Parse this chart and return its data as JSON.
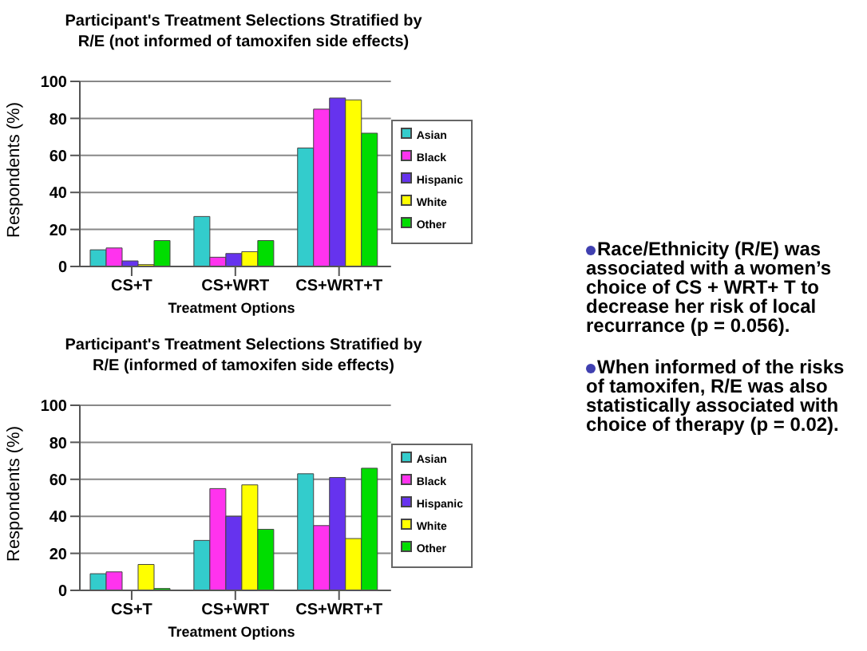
{
  "chart_data": [
    {
      "type": "bar",
      "title": "Participant's Treatment Selections Stratified by R/E (not informed of tamoxifen side effects)",
      "xlabel": "Treatment Options",
      "ylabel": "Respondents (%)",
      "categories": [
        "CS+T",
        "CS+WRT",
        "CS+WRT+T"
      ],
      "series": [
        {
          "name": "Asian",
          "color": "#33cccc",
          "values": [
            9,
            27,
            64
          ]
        },
        {
          "name": "Black",
          "color": "#ff33ee",
          "values": [
            10,
            5,
            85
          ]
        },
        {
          "name": "Hispanic",
          "color": "#6633ee",
          "values": [
            3,
            7,
            91
          ]
        },
        {
          "name": "White",
          "color": "#ffff00",
          "values": [
            1,
            8,
            90
          ]
        },
        {
          "name": "Other",
          "color": "#00dd00",
          "values": [
            14,
            14,
            72
          ]
        }
      ],
      "ylim": [
        0,
        100
      ],
      "yticks": [
        0,
        20,
        40,
        60,
        80,
        100
      ],
      "grid": "y",
      "legend": "right"
    },
    {
      "type": "bar",
      "title": "Participant's Treatment Selections Stratified by R/E (informed of tamoxifen side effects)",
      "xlabel": "Treatment Options",
      "ylabel": "Respondents (%)",
      "categories": [
        "CS+T",
        "CS+WRT",
        "CS+WRT+T"
      ],
      "series": [
        {
          "name": "Asian",
          "color": "#33cccc",
          "values": [
            9,
            27,
            63
          ]
        },
        {
          "name": "Black",
          "color": "#ff33ee",
          "values": [
            10,
            55,
            35
          ]
        },
        {
          "name": "Hispanic",
          "color": "#6633ee",
          "values": [
            0,
            40,
            61
          ]
        },
        {
          "name": "White",
          "color": "#ffff00",
          "values": [
            14,
            57,
            28
          ]
        },
        {
          "name": "Other",
          "color": "#00dd00",
          "values": [
            1,
            33,
            66
          ]
        }
      ],
      "ylim": [
        0,
        100
      ],
      "yticks": [
        0,
        20,
        40,
        60,
        80,
        100
      ],
      "grid": "y",
      "legend": "right"
    },
    {
      "type": "other",
      "annotations": [
        "Race/Ethnicity (R/E) was associated with a women’s choice of CS + WRT+ T to decrease her risk of local recurrance (p = 0.056).",
        "When informed of the risks of tamoxifen, R/E was also statistically associated with choice of therapy (p = 0.02)."
      ]
    }
  ]
}
